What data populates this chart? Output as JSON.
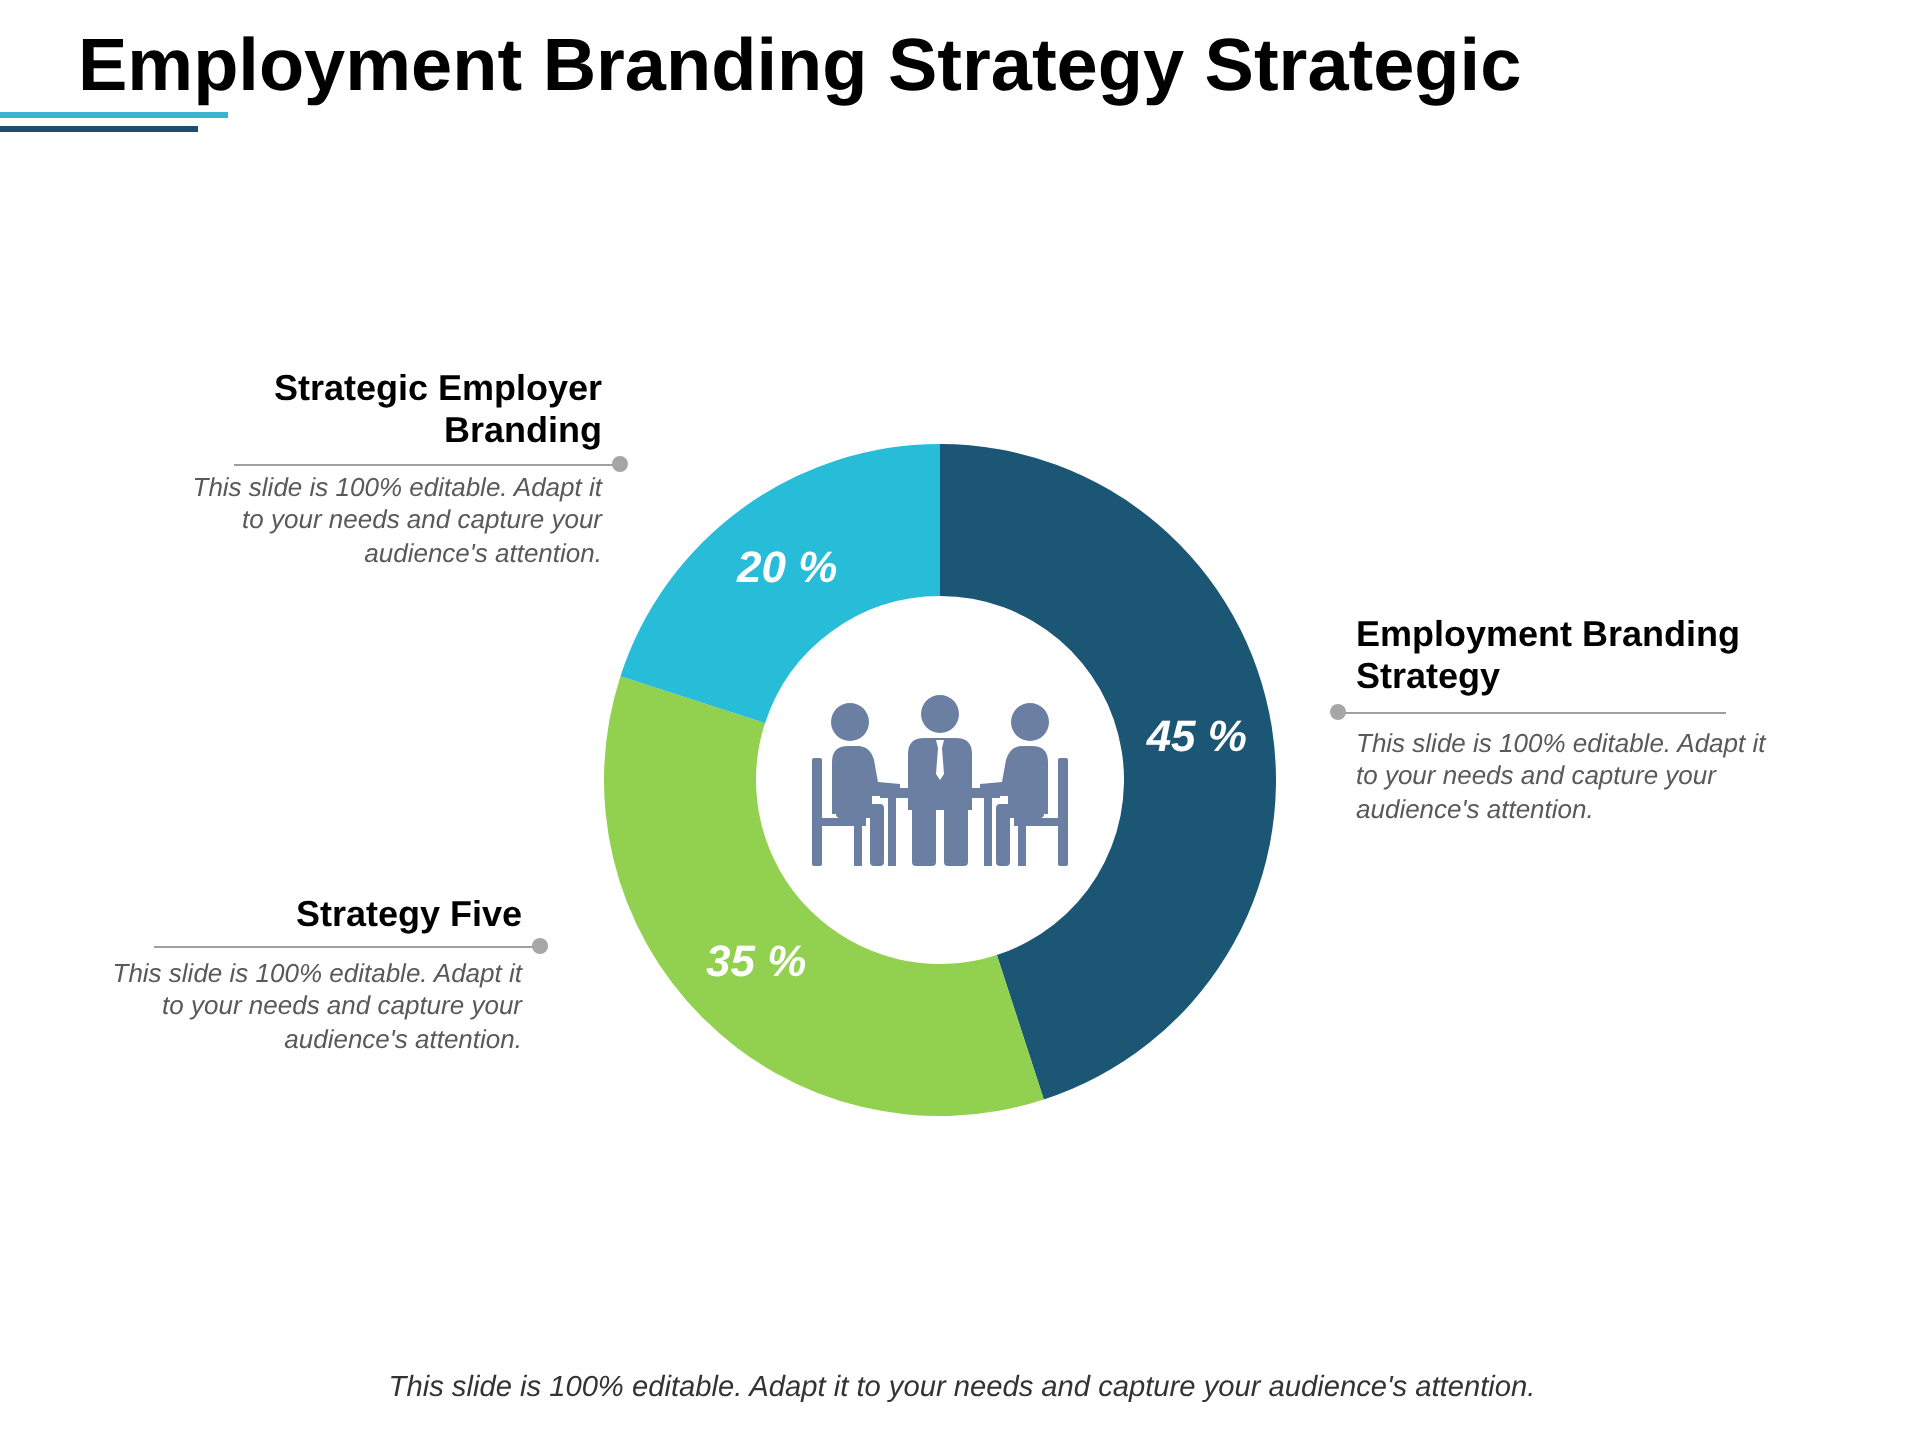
{
  "chart_data": {
    "type": "donut",
    "title": "Employment Branding Strategy Strategic",
    "categories": [
      "Employment Branding Strategy",
      "Strategy Five",
      "Strategic Employer Branding"
    ],
    "values": [
      45,
      35,
      20
    ],
    "colors": [
      "#1b5675",
      "#92d050",
      "#27bcd7"
    ],
    "value_labels": [
      "45 %",
      "35 %",
      "20 %"
    ],
    "annotations": [
      "This slide is 100% editable. Adapt it to your needs and capture your audience's attention.",
      "This slide is 100% editable. Adapt it to your needs and capture your audience's attention.",
      "This slide is 100% editable. Adapt it to your needs and capture your audience's attention.",
      "This slide is 100% editable. Adapt it to your needs and capture your audience's attention."
    ]
  }
}
